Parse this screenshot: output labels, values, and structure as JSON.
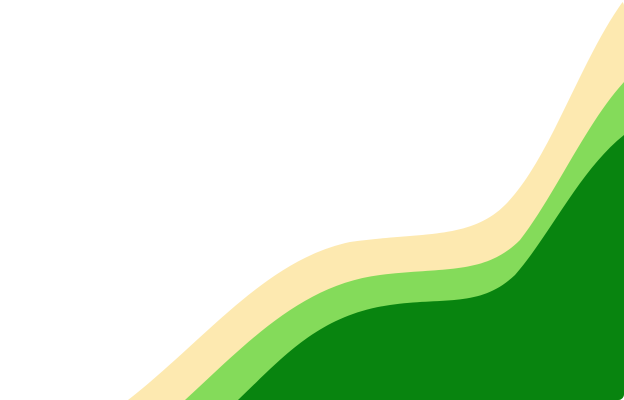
{
  "colors": {
    "background": "#ffffff",
    "wave_back": "#fde9b0",
    "wave_middle": "#84db5a",
    "wave_front": "#08840f"
  }
}
